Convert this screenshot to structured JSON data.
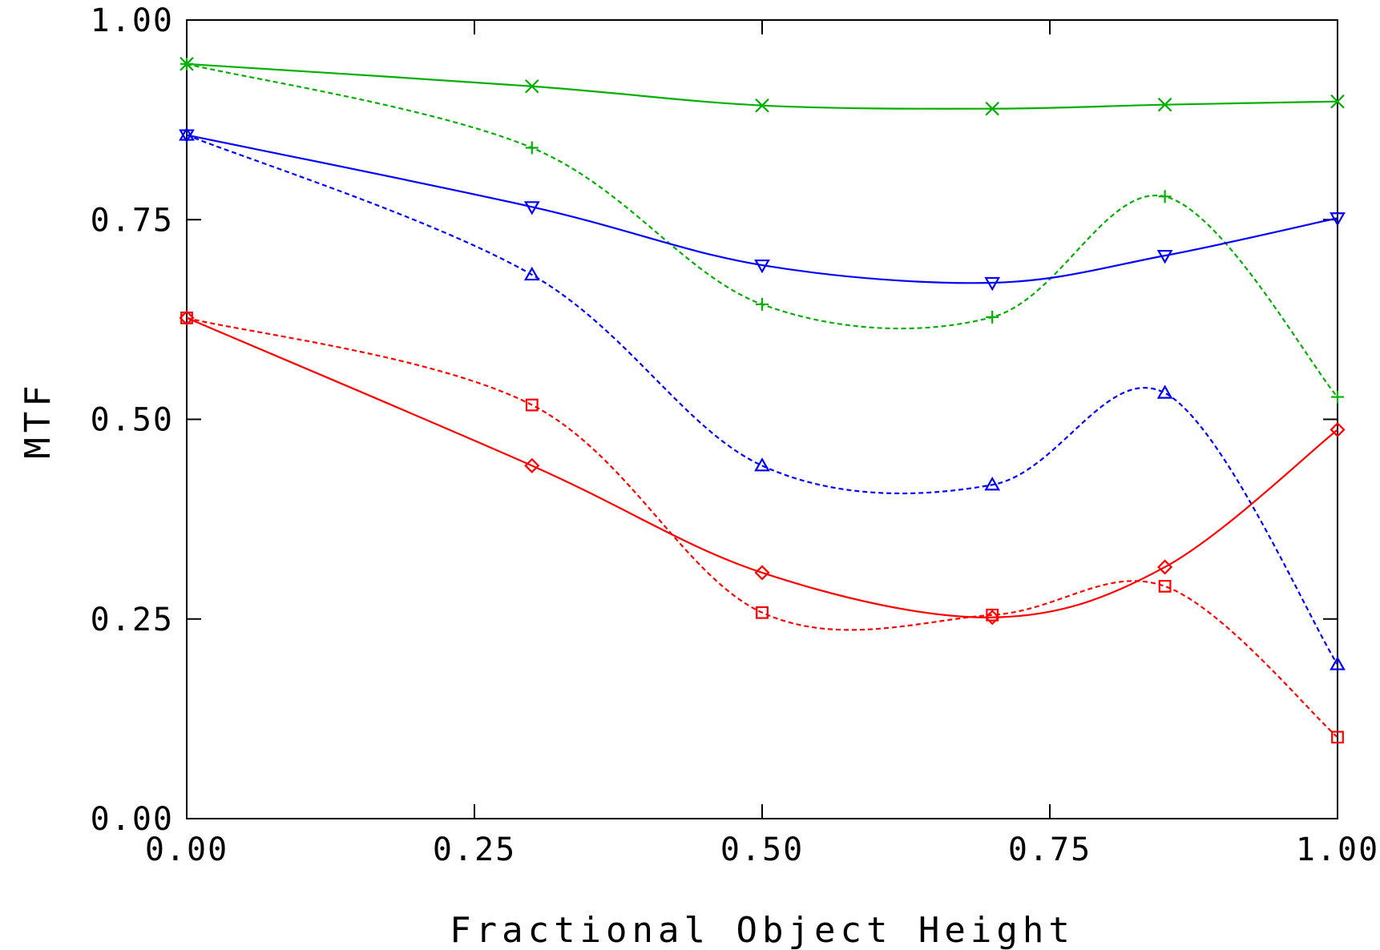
{
  "chart_data": {
    "type": "line",
    "title": "",
    "xlabel": "Fractional Object Height",
    "ylabel": "MTF",
    "xlim": [
      0,
      1
    ],
    "ylim": [
      0,
      1
    ],
    "x_ticks": [
      "0.00",
      "0.25",
      "0.50",
      "0.75",
      "1.00"
    ],
    "y_ticks": [
      "0.00",
      "0.25",
      "0.50",
      "0.75",
      "1.00"
    ],
    "grid": false,
    "legend": "none",
    "x": [
      0,
      0.3,
      0.5,
      0.7,
      0.85,
      1.0
    ],
    "series": [
      {
        "color": "#00b000",
        "dash": false,
        "marker": "x",
        "values": [
          0.945,
          0.917,
          0.893,
          0.889,
          0.894,
          0.898
        ]
      },
      {
        "color": "#00b000",
        "dash": true,
        "marker": "plus",
        "values": [
          0.945,
          0.84,
          0.644,
          0.628,
          0.779,
          0.528
        ]
      },
      {
        "color": "#0000ff",
        "dash": false,
        "marker": "triangle-down",
        "values": [
          0.856,
          0.766,
          0.693,
          0.671,
          0.705,
          0.752
        ]
      },
      {
        "color": "#0000ff",
        "dash": true,
        "marker": "triangle-up",
        "values": [
          0.856,
          0.681,
          0.442,
          0.418,
          0.533,
          0.193
        ]
      },
      {
        "color": "#ff0000",
        "dash": false,
        "marker": "diamond",
        "values": [
          0.627,
          0.442,
          0.308,
          0.252,
          0.315,
          0.487
        ]
      },
      {
        "color": "#ff0000",
        "dash": true,
        "marker": "square",
        "values": [
          0.627,
          0.518,
          0.258,
          0.255,
          0.291,
          0.102
        ]
      }
    ]
  }
}
